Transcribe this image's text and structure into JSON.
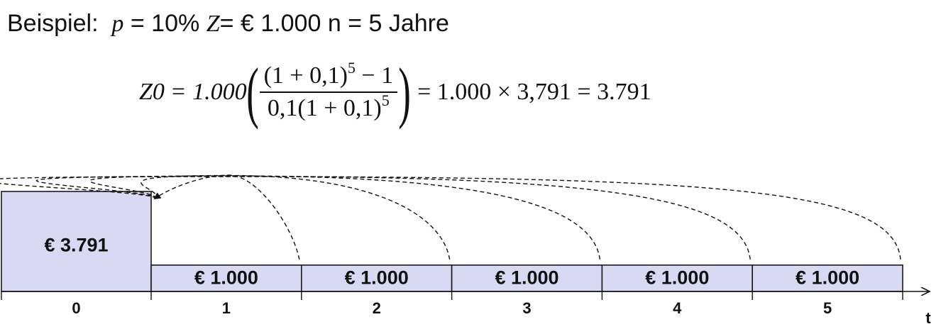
{
  "header": {
    "prefix": "Beispiel:",
    "p_var": "p",
    "p_value": "= 10%",
    "z_var": "Z",
    "z_value": "= € 1.000",
    "n_text": "n = 5 Jahre"
  },
  "formula": {
    "lhs": "Z",
    "lhs_sub": "0",
    "eq1": "=",
    "factor": "1.000",
    "paren_open": "(",
    "paren_close": ")",
    "numerator_base": "(1 + 0,1)",
    "numerator_exp": "5",
    "numerator_rest": "− 1",
    "denominator_base": "0,1(1 + 0,1)",
    "denominator_exp": "5",
    "result": "= 1.000 × 3,791 = 3.791"
  },
  "chart_data": {
    "type": "bar",
    "present_value_label": "€ 3.791",
    "present_value": 3791,
    "payment_value": 1000,
    "payments": [
      "€ 1.000",
      "€ 1.000",
      "€ 1.000",
      "€ 1.000",
      "€ 1.000"
    ],
    "periods": [
      "0",
      "1",
      "2",
      "3",
      "4",
      "5"
    ],
    "axis_label": "t",
    "colors": {
      "fill": "#d9d9f3",
      "stroke": "#1a1a1a",
      "arrow": "#111111"
    }
  }
}
